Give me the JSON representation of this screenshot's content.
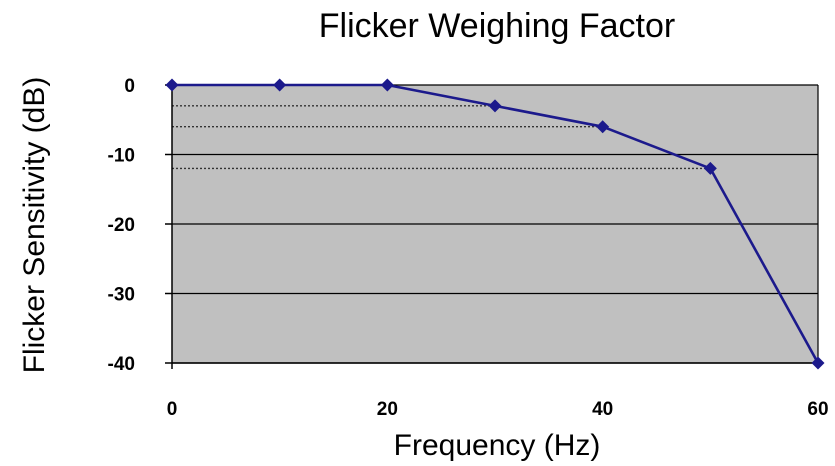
{
  "chart_data": {
    "type": "line",
    "title": "Flicker Weighing Factor",
    "xlabel": "Frequency (Hz)",
    "ylabel": "Flicker Sensitivity (dB)",
    "xlim": [
      0,
      60
    ],
    "ylim": [
      -40,
      0
    ],
    "xticks": [
      0,
      20,
      40,
      60
    ],
    "yticks": [
      0,
      -10,
      -20,
      -30,
      -40
    ],
    "grid": true,
    "series": [
      {
        "x": [
          0,
          10,
          20,
          30,
          40,
          50,
          60
        ],
        "y": [
          0,
          0,
          0,
          -3,
          -6,
          -12,
          -40
        ]
      }
    ],
    "reference_lines": [
      -3,
      -6,
      -12
    ],
    "colors": {
      "plot_background": "#c0c0c0",
      "line": "#1c1a8c",
      "grid": "#000000"
    }
  }
}
